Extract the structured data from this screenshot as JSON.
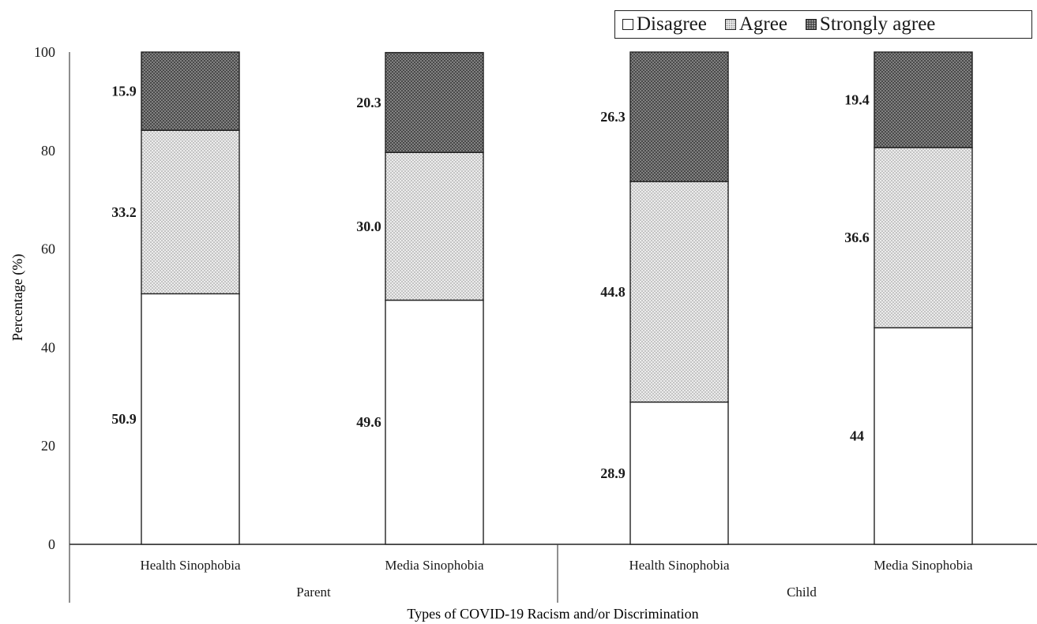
{
  "chart_data": {
    "type": "bar",
    "stacked": true,
    "categories": [
      "Health Sinophobia",
      "Media Sinophobia",
      "Health Sinophobia",
      "Media Sinophobia"
    ],
    "groups": [
      {
        "label": "Parent",
        "categories": [
          "Health Sinophobia",
          "Media Sinophobia"
        ]
      },
      {
        "label": "Child",
        "categories": [
          "Health Sinophobia",
          "Media Sinophobia"
        ]
      }
    ],
    "series": [
      {
        "name": "Disagree",
        "values": [
          50.9,
          49.6,
          28.9,
          44
        ],
        "labels": [
          "50.9",
          "49.6",
          "28.9",
          "44"
        ],
        "color": "#ffffff"
      },
      {
        "name": "Agree",
        "values": [
          33.2,
          30.0,
          44.8,
          36.6
        ],
        "labels": [
          "33.2",
          "30.0",
          "44.8",
          "36.6"
        ],
        "color": "#e6e6e6"
      },
      {
        "name": "Strongly agree",
        "values": [
          15.9,
          20.3,
          26.3,
          19.4
        ],
        "labels": [
          "15.9",
          "20.3",
          "26.3",
          "19.4"
        ],
        "color": "#4a4a4a"
      }
    ],
    "xlabel": "Types of COVID-19 Racism and/or Discrimination",
    "ylabel": "Percentage (%)",
    "ylim": [
      0,
      100
    ],
    "yticks": [
      "0",
      "20",
      "40",
      "60",
      "80",
      "100"
    ],
    "legend_position": "top-right",
    "grid": false
  }
}
